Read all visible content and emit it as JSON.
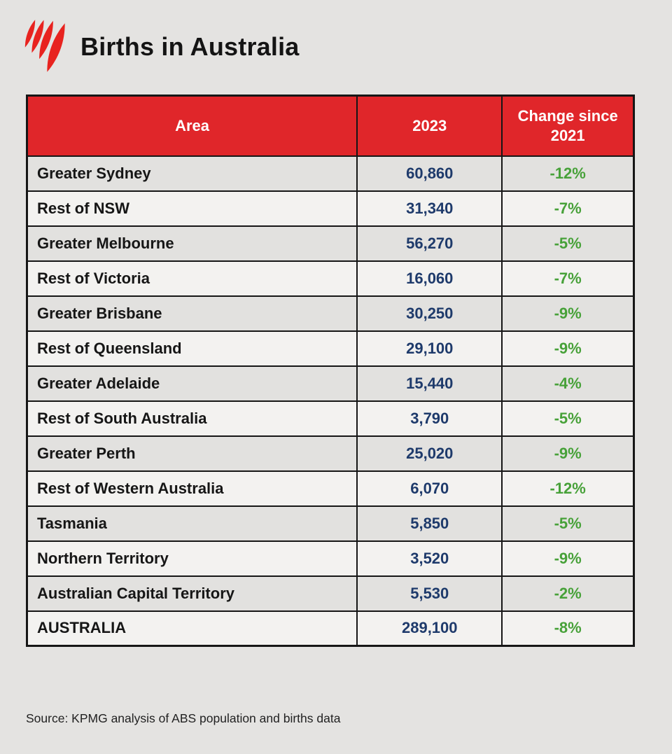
{
  "header": {
    "title": "Births in Australia",
    "logo": "sbs-logo"
  },
  "chart_data": {
    "type": "table",
    "title": "Births in Australia",
    "columns": [
      "Area",
      "2023",
      "Change since 2021"
    ],
    "rows": [
      {
        "area": "Greater Sydney",
        "value": "60,860",
        "change": "-12%"
      },
      {
        "area": "Rest of NSW",
        "value": "31,340",
        "change": "-7%"
      },
      {
        "area": "Greater Melbourne",
        "value": "56,270",
        "change": "-5%"
      },
      {
        "area": "Rest of Victoria",
        "value": "16,060",
        "change": "-7%"
      },
      {
        "area": "Greater Brisbane",
        "value": "30,250",
        "change": "-9%"
      },
      {
        "area": "Rest of Queensland",
        "value": "29,100",
        "change": "-9%"
      },
      {
        "area": "Greater Adelaide",
        "value": "15,440",
        "change": "-4%"
      },
      {
        "area": "Rest of South Australia",
        "value": "3,790",
        "change": "-5%"
      },
      {
        "area": "Greater Perth",
        "value": "25,020",
        "change": "-9%"
      },
      {
        "area": "Rest of Western Australia",
        "value": "6,070",
        "change": "-12%"
      },
      {
        "area": "Tasmania",
        "value": "5,850",
        "change": "-5%"
      },
      {
        "area": "Northern Territory",
        "value": "3,520",
        "change": "-9%"
      },
      {
        "area": "Australian Capital Territory",
        "value": "5,530",
        "change": "-2%"
      },
      {
        "area": "AUSTRALIA",
        "value": "289,100",
        "change": "-8%"
      }
    ]
  },
  "footer": {
    "source": "Source: KPMG analysis of ABS population and births data"
  },
  "colors": {
    "background": "#e4e3e1",
    "header_red": "#e0262a",
    "header_text": "#ffffff",
    "row_odd": "#e2e1df",
    "row_even": "#f3f2f0",
    "border": "#161616",
    "area_text": "#161616",
    "value_navy": "#1e3a6b",
    "change_green": "#47a139",
    "logo_red": "#e8231f"
  }
}
